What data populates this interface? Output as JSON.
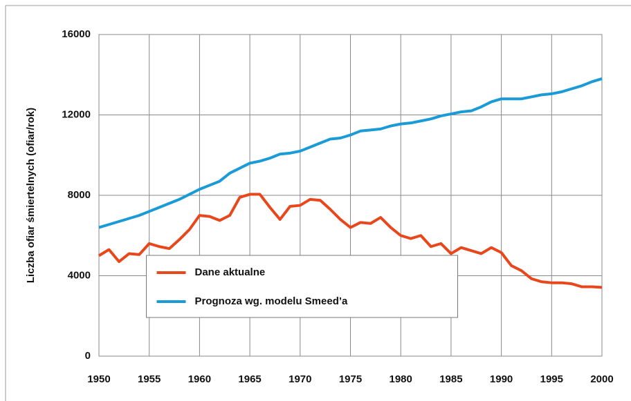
{
  "chart_data": {
    "type": "line",
    "y_label": "Liczba ofiar śmiertelnych (ofiar/rok)",
    "x": [
      1950,
      1951,
      1952,
      1953,
      1954,
      1955,
      1956,
      1957,
      1958,
      1959,
      1960,
      1961,
      1962,
      1963,
      1964,
      1965,
      1966,
      1967,
      1968,
      1969,
      1970,
      1971,
      1972,
      1973,
      1974,
      1975,
      1976,
      1977,
      1978,
      1979,
      1980,
      1981,
      1982,
      1983,
      1984,
      1985,
      1986,
      1987,
      1988,
      1989,
      1990,
      1991,
      1992,
      1993,
      1994,
      1995,
      1996,
      1997,
      1998,
      1999,
      2000
    ],
    "series": [
      {
        "name": "Dane aktualne",
        "color": "#e8471c",
        "values": [
          5000,
          5300,
          4700,
          5100,
          5050,
          5600,
          5450,
          5350,
          5800,
          6300,
          7000,
          6950,
          6750,
          7000,
          7900,
          8050,
          8050,
          7400,
          6800,
          7450,
          7500,
          7800,
          7750,
          7300,
          6800,
          6400,
          6650,
          6600,
          6900,
          6400,
          6000,
          5850,
          6000,
          5450,
          5600,
          5100,
          5400,
          5250,
          5100,
          5400,
          5150,
          4500,
          4250,
          3850,
          3700,
          3650,
          3650,
          3600,
          3450,
          3450,
          3420
        ]
      },
      {
        "name": "Prognoza wg. modelu Smeed’a",
        "color": "#1a9ad6",
        "values": [
          6400,
          6550,
          6700,
          6850,
          7000,
          7200,
          7400,
          7600,
          7800,
          8050,
          8300,
          8500,
          8700,
          9100,
          9350,
          9600,
          9700,
          9850,
          10050,
          10100,
          10200,
          10400,
          10600,
          10800,
          10850,
          11000,
          11200,
          11250,
          11300,
          11450,
          11550,
          11600,
          11700,
          11800,
          11950,
          12050,
          12150,
          12200,
          12400,
          12650,
          12800,
          12800,
          12800,
          12900,
          13000,
          13050,
          13150,
          13300,
          13450,
          13650,
          13800
        ]
      }
    ],
    "xlim": [
      1950,
      2000
    ],
    "xticks": [
      1950,
      1955,
      1960,
      1965,
      1970,
      1975,
      1980,
      1985,
      1990,
      1995,
      2000
    ],
    "ylim": [
      0,
      16000
    ],
    "yticks": [
      0,
      4000,
      8000,
      12000,
      16000
    ],
    "grid": true,
    "legend": "bottom-center"
  }
}
